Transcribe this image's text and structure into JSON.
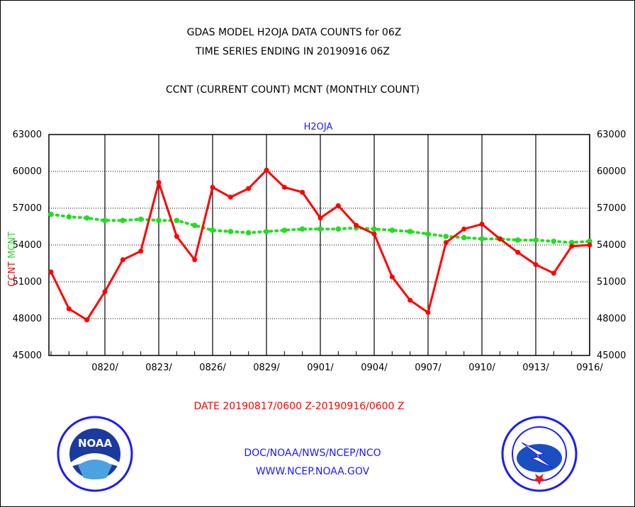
{
  "chart_data": {
    "type": "line",
    "title_lines": [
      "GDAS MODEL H2OJA DATA COUNTS for 06Z",
      "TIME SERIES ENDING IN 20190916 06Z"
    ],
    "subtitle": "CCNT (CURRENT COUNT) MCNT (MONTHLY COUNT)",
    "plot_label": "H2OJA",
    "xlabel": "DATE 20190817/0600 Z-20190916/0600 Z",
    "ylabel_parts": {
      "ccnt": "CCNT",
      "mcnt": "MCNT"
    },
    "x": [
      "0817",
      "0818",
      "0819",
      "0820",
      "0821",
      "0822",
      "0823",
      "0824",
      "0825",
      "0826",
      "0827",
      "0828",
      "0829",
      "0830",
      "0831",
      "0901",
      "0902",
      "0903",
      "0904",
      "0905",
      "0906",
      "0907",
      "0908",
      "0909",
      "0910",
      "0911",
      "0912",
      "0913",
      "0914",
      "0915",
      "0916"
    ],
    "xticks": [
      "0820/",
      "0823/",
      "0826/",
      "0829/",
      "0901/",
      "0904/",
      "0907/",
      "0910/",
      "0913/",
      "0916/"
    ],
    "ylim": [
      45000,
      63000
    ],
    "yticks": [
      "45000",
      "48000",
      "51000",
      "54000",
      "57000",
      "60000",
      "63000"
    ],
    "grid": true,
    "series": [
      {
        "name": "CCNT",
        "color": "#ff0000",
        "values": [
          51800,
          48800,
          47900,
          50200,
          52800,
          53500,
          59100,
          54700,
          52800,
          58700,
          57900,
          58600,
          60100,
          58700,
          58300,
          56200,
          57200,
          55600,
          54900,
          51400,
          49500,
          48500,
          54200,
          55300,
          55700,
          54500,
          53400,
          52400,
          51700,
          53900,
          54000
        ]
      },
      {
        "name": "MCNT",
        "color": "#22dd22",
        "values": [
          56500,
          56300,
          56200,
          56000,
          56000,
          56100,
          56000,
          56000,
          55600,
          55200,
          55100,
          55000,
          55100,
          55200,
          55300,
          55300,
          55300,
          55400,
          55300,
          55200,
          55100,
          54900,
          54700,
          54600,
          54500,
          54500,
          54400,
          54400,
          54300,
          54200,
          54300
        ]
      }
    ]
  },
  "footer": {
    "org": "DOC/NOAA/NWS/NCEP/NCO",
    "url": "WWW.NCEP.NOAA.GOV"
  },
  "logos": {
    "noaa": "NOAA"
  }
}
